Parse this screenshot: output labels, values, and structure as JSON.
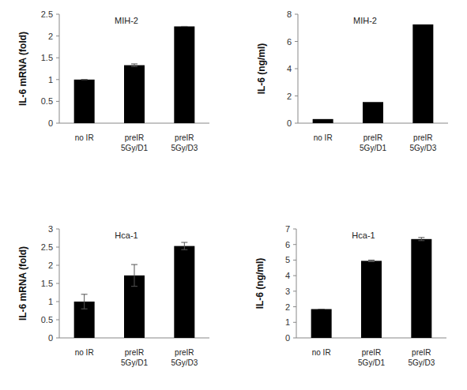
{
  "chart_data": [
    {
      "type": "bar",
      "title": "MIH-2",
      "y_label": "IL-6 mRNA  (fold)",
      "categories": [
        "no IR",
        "preIR\n5Gy/D1",
        "preIR\n5Gy/D3"
      ],
      "values": [
        1.0,
        1.33,
        2.22
      ],
      "errors": [
        0,
        0.03,
        0
      ],
      "color": "#000000",
      "ylim": [
        0,
        2.5
      ],
      "yticks": [
        0,
        0.5,
        1,
        1.5,
        2,
        2.5
      ]
    },
    {
      "type": "bar",
      "title": "MIH-2",
      "y_label": "IL-6 (ng/ml)",
      "categories": [
        "no IR",
        "preIR\n5Gy/D1",
        "preIR\n5Gy/D3"
      ],
      "values": [
        0.3,
        1.55,
        7.25
      ],
      "color": "#000000",
      "ylim": [
        0,
        8
      ],
      "yticks": [
        0,
        2,
        4,
        6,
        8
      ]
    },
    {
      "type": "bar",
      "title": "Hca-1",
      "y_label": "IL-6 mRNA  (fold)",
      "categories": [
        "no IR",
        "preIR\n5Gy/D1",
        "preIR\n5Gy/D3"
      ],
      "values": [
        1.0,
        1.72,
        2.53
      ],
      "errors": [
        0.2,
        0.3,
        0.1
      ],
      "color": "#000000",
      "ylim": [
        0,
        3
      ],
      "yticks": [
        0,
        0.5,
        1,
        1.5,
        2,
        2.5,
        3
      ]
    },
    {
      "type": "bar",
      "title": "Hca-1",
      "y_label": "IL-6 (ng/ml)",
      "categories": [
        "no IR",
        "preIR\n5Gy/D1",
        "preIR\n5Gy/D3"
      ],
      "values": [
        1.85,
        4.95,
        6.35
      ],
      "errors": [
        0,
        0.05,
        0.1
      ],
      "color": "#000000",
      "ylim": [
        0,
        7
      ],
      "yticks": [
        0,
        1,
        2,
        3,
        4,
        5,
        6,
        7
      ]
    }
  ]
}
